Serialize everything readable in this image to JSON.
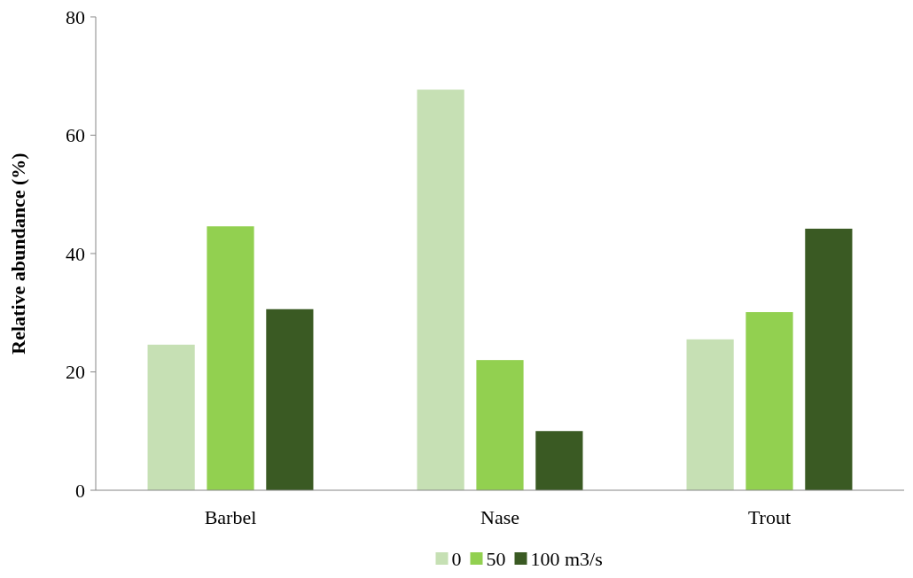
{
  "chart_data": {
    "type": "bar",
    "ylabel": "Relative abundance (%)",
    "categories": [
      "Barbel",
      "Nase",
      "Trout"
    ],
    "series": [
      {
        "name": "0",
        "color": "#c6e0b4",
        "values": [
          24.6,
          67.7,
          25.5
        ]
      },
      {
        "name": "50",
        "color": "#92d050",
        "values": [
          44.6,
          22.0,
          30.1
        ]
      },
      {
        "name": "100 m3/s",
        "color": "#3a5a23",
        "values": [
          30.6,
          10.0,
          44.2
        ]
      }
    ],
    "ylim": [
      0,
      80
    ],
    "yticks": [
      0,
      20,
      40,
      60,
      80
    ],
    "grid": false,
    "legend": "bottom"
  }
}
